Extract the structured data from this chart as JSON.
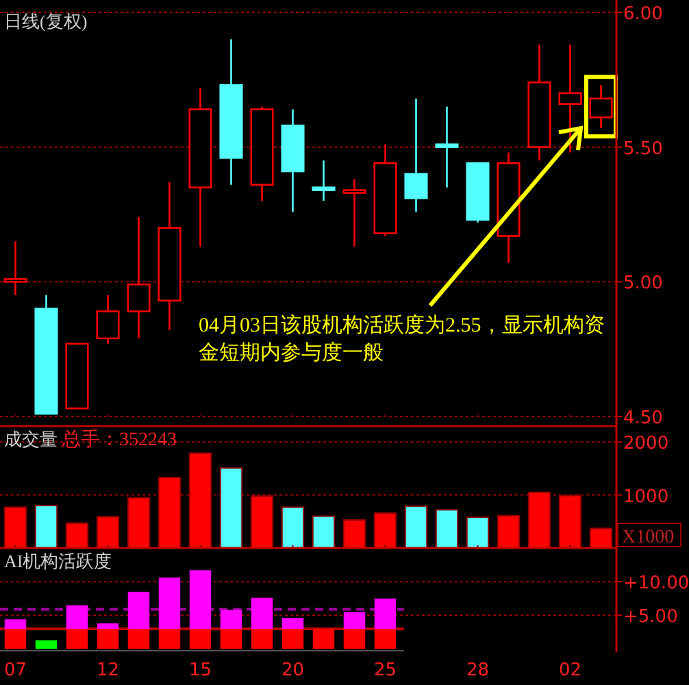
{
  "chart_data": [
    {
      "type": "candlestick",
      "title": "日线(复权)",
      "categories": [
        "07",
        null,
        null,
        "12",
        null,
        null,
        "15",
        null,
        null,
        "20",
        null,
        null,
        "25",
        null,
        null,
        "28",
        null,
        null,
        "02",
        null
      ],
      "ohlc": [
        [
          5.0,
          5.15,
          4.95,
          5.01
        ],
        [
          4.9,
          4.95,
          4.51,
          4.51
        ],
        [
          4.53,
          4.77,
          4.53,
          4.77
        ],
        [
          4.79,
          4.95,
          4.77,
          4.89
        ],
        [
          4.89,
          5.24,
          4.79,
          4.99
        ],
        [
          4.93,
          5.37,
          4.82,
          5.2
        ],
        [
          5.35,
          5.72,
          5.13,
          5.64
        ],
        [
          5.73,
          5.9,
          5.36,
          5.46
        ],
        [
          5.36,
          5.65,
          5.3,
          5.64
        ],
        [
          5.58,
          5.64,
          5.26,
          5.41
        ],
        [
          5.35,
          5.45,
          5.3,
          5.34
        ],
        [
          5.33,
          5.38,
          5.13,
          5.34
        ],
        [
          5.18,
          5.51,
          5.17,
          5.44
        ],
        [
          5.4,
          5.68,
          5.26,
          5.31
        ],
        [
          5.51,
          5.65,
          5.35,
          5.5
        ],
        [
          5.44,
          5.44,
          5.22,
          5.23
        ],
        [
          5.17,
          5.48,
          5.07,
          5.44
        ],
        [
          5.5,
          5.88,
          5.45,
          5.74
        ],
        [
          5.66,
          5.88,
          5.48,
          5.7
        ],
        [
          5.61,
          5.73,
          5.57,
          5.68
        ]
      ],
      "colors": [
        "#ff0000",
        "#54ffff",
        "#ff0000",
        "#ff0000",
        "#ff0000",
        "#ff0000",
        "#ff0000",
        "#54ffff",
        "#ff0000",
        "#54ffff",
        "#54ffff",
        "#ff0000",
        "#ff0000",
        "#54ffff",
        "#54ffff",
        "#54ffff",
        "#ff0000",
        "#ff0000",
        "#ff0000",
        "#ff0000"
      ],
      "ylim": [
        4.5,
        6.0
      ],
      "yticks": [
        {
          "value": 4.5,
          "label": "4.50"
        },
        {
          "value": 5,
          "label": "5.00"
        },
        {
          "value": 5.5,
          "label": "5.50"
        },
        {
          "value": 6,
          "label": "6.00"
        }
      ],
      "grid": "y",
      "tick_labels": "y",
      "annotations": [
        "04月03日该股机构活跃度为2.55，显示机构资金短期内参与度一般"
      ]
    },
    {
      "type": "bar",
      "title": "成交量",
      "categories": [
        "07",
        null,
        null,
        "12",
        null,
        null,
        "15",
        null,
        null,
        "20",
        null,
        null,
        "25",
        null,
        null,
        "28",
        null,
        null,
        "02",
        null
      ],
      "values": [
        770,
        800,
        470,
        590,
        950,
        1330,
        1790,
        1510,
        980,
        770,
        600,
        530,
        660,
        790,
        720,
        580,
        610,
        1050,
        990,
        370
      ],
      "colors": [
        "#ff0000",
        "#54ffff",
        "#ff0000",
        "#ff0000",
        "#ff0000",
        "#ff0000",
        "#ff0000",
        "#54ffff",
        "#ff0000",
        "#54ffff",
        "#54ffff",
        "#ff0000",
        "#ff0000",
        "#54ffff",
        "#54ffff",
        "#54ffff",
        "#ff0000",
        "#ff0000",
        "#ff0000",
        "#ff0000"
      ],
      "ylim": [
        0,
        2300
      ],
      "yticks": [
        1000,
        2000
      ],
      "grid": "y",
      "tick_labels": "y",
      "annotations": [
        "总手：352243",
        "X1000"
      ]
    },
    {
      "type": "bar",
      "title": "AI机构活跃度",
      "stacked": true,
      "categories": [
        "07",
        null,
        null,
        "12",
        null,
        null,
        "15",
        null,
        null,
        "20",
        null,
        null,
        "25",
        null,
        null,
        "28",
        null,
        null,
        "02",
        null
      ],
      "series": [
        {
          "color": "#ff0000",
          "values": [
            3,
            null,
            3,
            3,
            3,
            3,
            3,
            3,
            3,
            3,
            3,
            3,
            3,
            null,
            null,
            null,
            null,
            null,
            null,
            null
          ]
        },
        {
          "color": "#ff00ff",
          "values": [
            1.4,
            null,
            3.5,
            0.8,
            5.5,
            7.6,
            8.7,
            2.8,
            4.6,
            1.6,
            0,
            2.5,
            4.5,
            null,
            null,
            null,
            null,
            null,
            null,
            null
          ]
        },
        {
          "color": "#00ff00",
          "values": [
            null,
            1.3,
            null,
            null,
            null,
            null,
            null,
            null,
            null,
            null,
            null,
            null,
            null,
            null,
            null,
            null,
            null,
            null,
            null,
            null
          ]
        }
      ],
      "ylim": [
        0,
        15
      ],
      "yticks": [
        {
          "value": 5,
          "label": "+5.00"
        },
        {
          "value": 10,
          "label": "+10.00"
        }
      ],
      "grid": "y",
      "ref_lines": [
        {
          "axis": "y",
          "value": 5.9,
          "color": "#a000a0",
          "line_style": "dashed"
        },
        {
          "axis": "y",
          "value": 3,
          "color": "#c00000",
          "line_style": "solid"
        }
      ]
    }
  ]
}
